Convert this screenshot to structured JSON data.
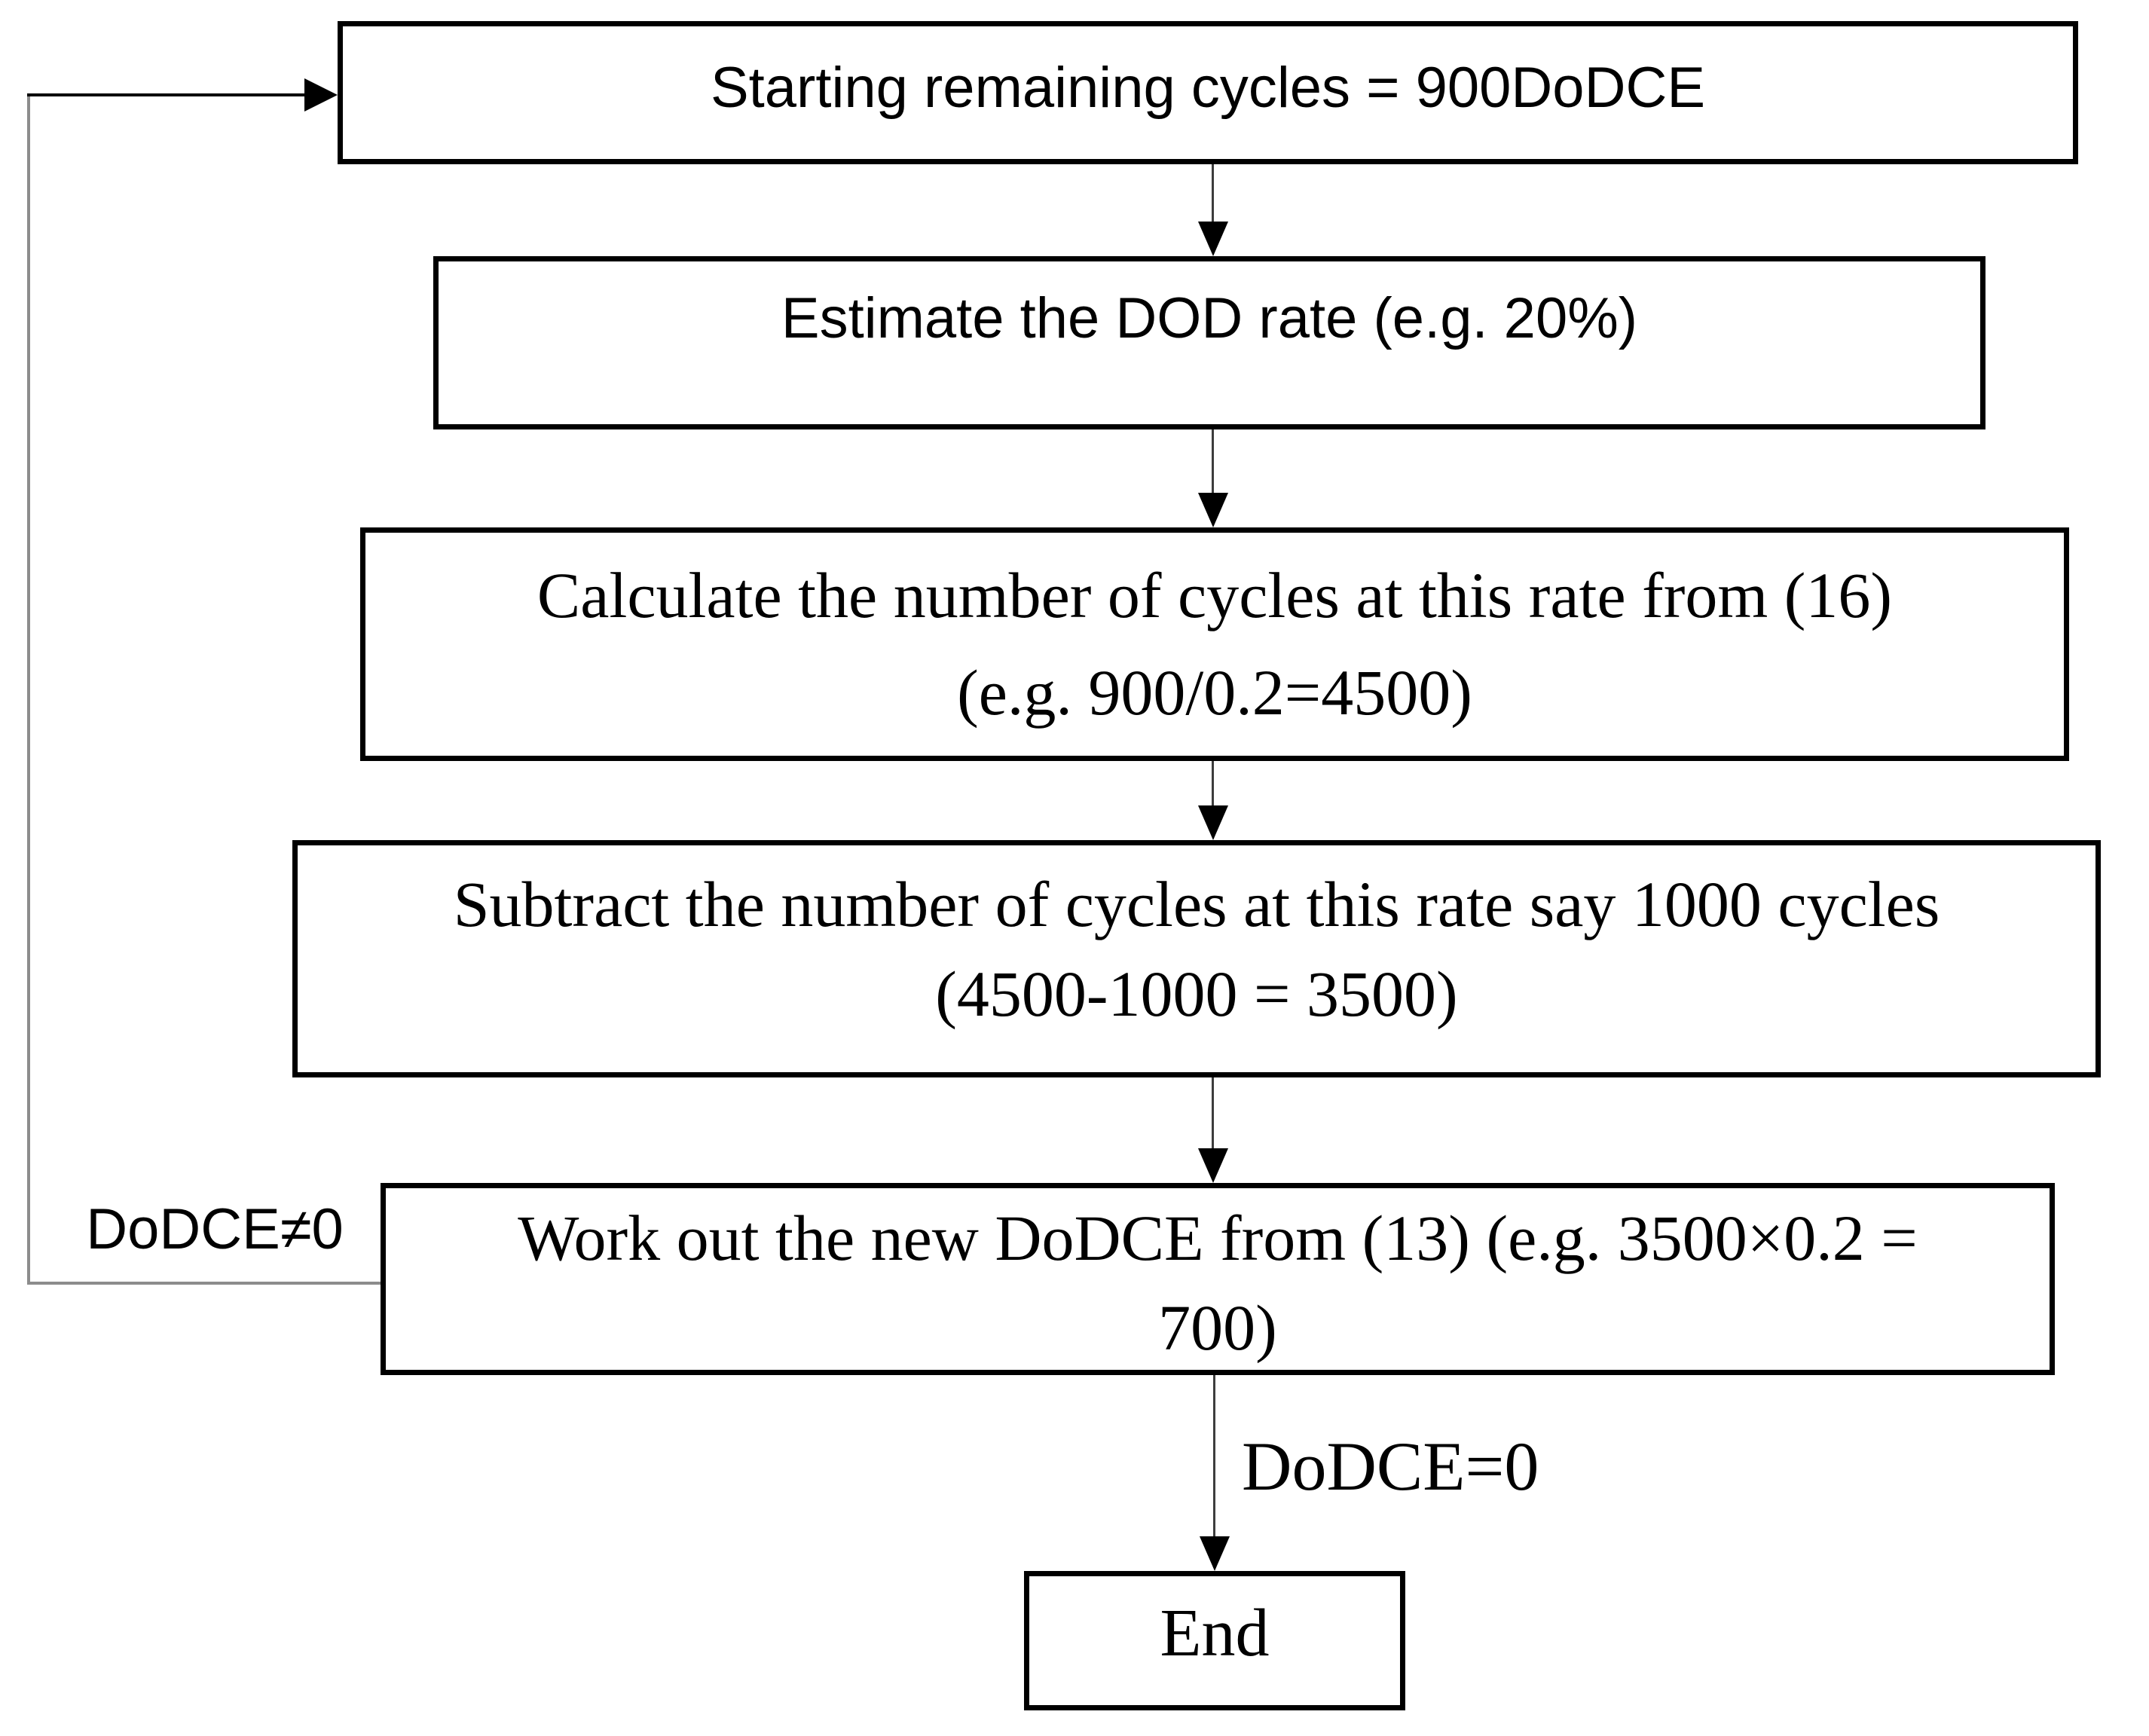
{
  "nodes": [
    {
      "id": "start",
      "lines": [
        "Starting remaining cycles = 900DoDCE"
      ]
    },
    {
      "id": "estimate-dod",
      "lines": [
        "Estimate the DOD rate (e.g. 20%)"
      ]
    },
    {
      "id": "calculate-cycles",
      "lines": [
        "Calculate the number of cycles at this rate from (16)",
        "(e.g. 900/0.2=4500)"
      ]
    },
    {
      "id": "subtract-cycles",
      "lines": [
        "Subtract the number of cycles at this rate say 1000 cycles",
        "(4500-1000 = 3500)"
      ]
    },
    {
      "id": "work-out-dodce",
      "lines": [
        "Work out the new DoDCE from (13) (e.g. 3500×0.2 =",
        "700)"
      ]
    },
    {
      "id": "end",
      "lines": [
        "End"
      ]
    }
  ],
  "edge_labels": {
    "loop_not_zero": "DoDCE≠0",
    "to_end_zero": "DoDCE=0"
  },
  "colors": {
    "box_border": "#000000",
    "text": "#000000",
    "loop_line": "#8c8c8c",
    "arrow": "#000000",
    "background": "#ffffff"
  }
}
